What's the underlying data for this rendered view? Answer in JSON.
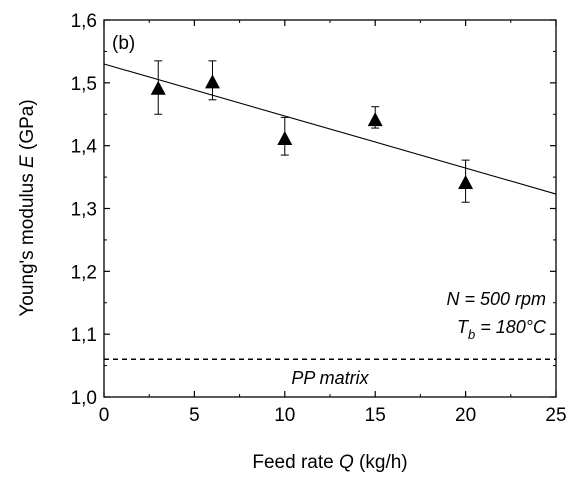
{
  "chart_data": {
    "type": "scatter",
    "panel_label": "(b)",
    "xlabel": {
      "prefix": "Feed rate ",
      "var": "Q",
      "suffix": " (kg/h)"
    },
    "ylabel": {
      "prefix": "Young's modulus ",
      "var": "E",
      "suffix": " (GPa)"
    },
    "xlim": [
      0,
      25
    ],
    "ylim": [
      1.0,
      1.6
    ],
    "x_ticks": [
      0,
      5,
      10,
      15,
      20,
      25
    ],
    "x_tick_labels": [
      "0",
      "5",
      "10",
      "15",
      "20",
      "25"
    ],
    "y_ticks": [
      1.0,
      1.1,
      1.2,
      1.3,
      1.4,
      1.5,
      1.6
    ],
    "y_tick_labels": [
      "1,0",
      "1,1",
      "1,2",
      "1,3",
      "1,4",
      "1,5",
      "1,6"
    ],
    "grid": false,
    "series": [
      {
        "marker": "triangle",
        "color": "#000000",
        "points": [
          {
            "x": 3,
            "y": 1.49,
            "err_low": 1.45,
            "err_high": 1.535
          },
          {
            "x": 6,
            "y": 1.5,
            "err_low": 1.473,
            "err_high": 1.535
          },
          {
            "x": 10,
            "y": 1.41,
            "err_low": 1.385,
            "err_high": 1.445
          },
          {
            "x": 15,
            "y": 1.44,
            "err_low": 1.428,
            "err_high": 1.462
          },
          {
            "x": 20,
            "y": 1.34,
            "err_low": 1.31,
            "err_high": 1.377
          }
        ]
      }
    ],
    "fit_line": {
      "x": [
        0,
        25
      ],
      "y": [
        1.53,
        1.323
      ],
      "color": "#000000"
    },
    "reference_line": {
      "y": 1.06,
      "style": "dashed",
      "label": "PP matrix"
    },
    "annotations": {
      "line1": "N = 500 rpm",
      "line2_var": "T",
      "line2_sub": "b",
      "line2_rest": " = 180°C"
    }
  }
}
